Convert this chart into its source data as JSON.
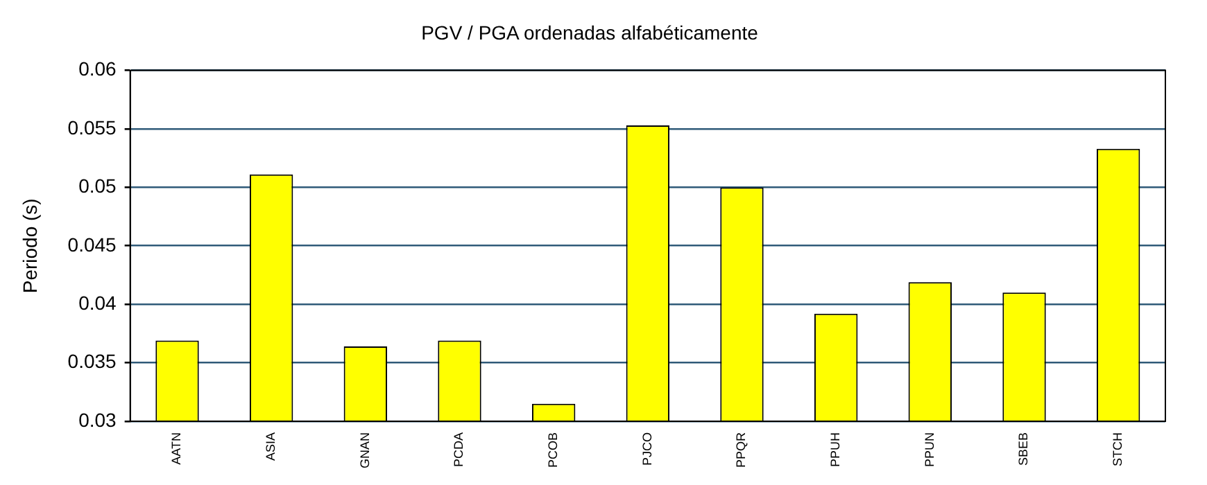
{
  "chart_data": {
    "type": "bar",
    "title": "PGV / PGA ordenadas alfabéticamente",
    "ylabel": "Periodo (s)",
    "categories": [
      "AATN",
      "ASIA",
      "GNAN",
      "PCDA",
      "PCOB",
      "PJCO",
      "PPQR",
      "PPUH",
      "PPUN",
      "SBEB",
      "STCH"
    ],
    "values": [
      0.0369,
      0.0511,
      0.0364,
      0.0369,
      0.0315,
      0.0553,
      0.05,
      0.0392,
      0.0419,
      0.041,
      0.0533
    ],
    "color": "#ffff00",
    "ylim": [
      0.03,
      0.06
    ],
    "yticks": [
      0.03,
      0.035,
      0.04,
      0.045,
      0.05,
      0.055,
      0.06
    ],
    "grid": "y",
    "legend": false
  }
}
